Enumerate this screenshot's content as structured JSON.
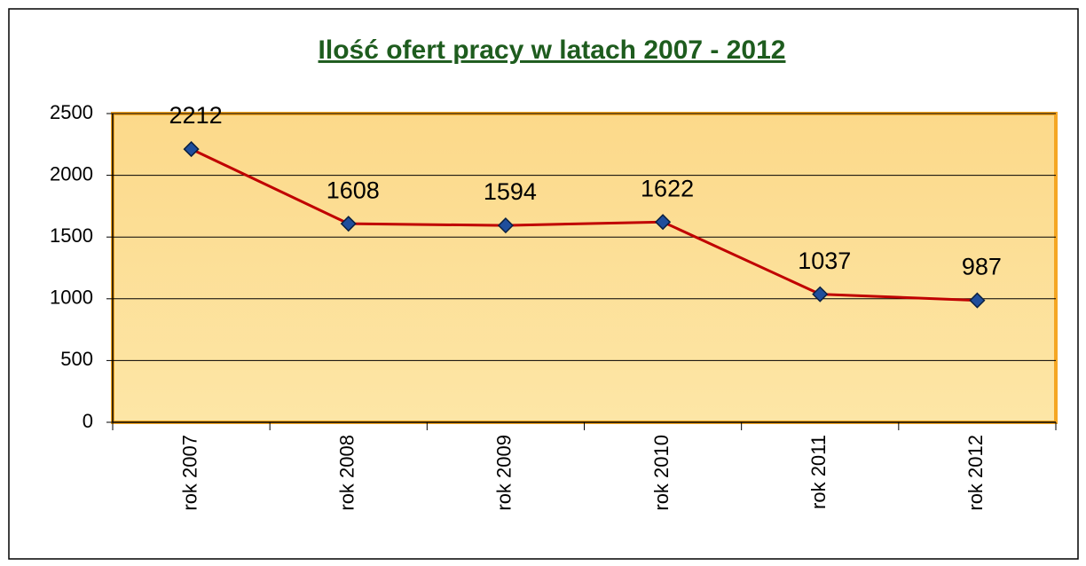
{
  "chart_data": {
    "type": "line",
    "title": "Ilość ofert pracy w latach 2007 - 2012",
    "categories": [
      "rok 2007",
      "rok 2008",
      "rok 2009",
      "rok 2010",
      "rok 2011",
      "rok 2012"
    ],
    "values": [
      2212,
      1608,
      1594,
      1622,
      1037,
      987
    ],
    "color": "#c00000",
    "marker_color": "#1f4e9c",
    "ylim": [
      0,
      2500
    ],
    "yticks": [
      0,
      500,
      1000,
      1500,
      2000,
      2500
    ],
    "grid": true
  }
}
